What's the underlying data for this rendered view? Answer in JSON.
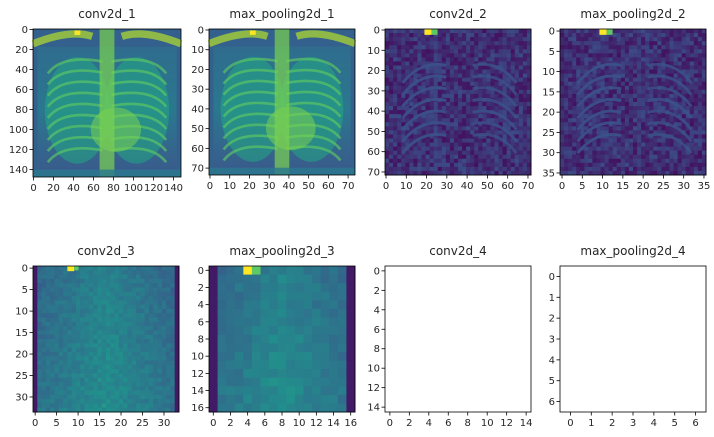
{
  "chart_data": [
    {
      "type": "heatmap",
      "title": "conv2d_1",
      "size": 148,
      "content": "chest-xray",
      "xticks": [
        "0",
        "20",
        "40",
        "60",
        "80",
        "100",
        "120",
        "140"
      ],
      "yticks": [
        "0",
        "20",
        "40",
        "60",
        "80",
        "100",
        "120",
        "140"
      ]
    },
    {
      "type": "heatmap",
      "title": "max_pooling2d_1",
      "size": 74,
      "content": "chest-xray",
      "xticks": [
        "0",
        "10",
        "20",
        "30",
        "40",
        "50",
        "60",
        "70"
      ],
      "yticks": [
        "0",
        "10",
        "20",
        "30",
        "40",
        "50",
        "60",
        "70"
      ]
    },
    {
      "type": "heatmap",
      "title": "conv2d_2",
      "size": 72,
      "content": "edge-features",
      "xticks": [
        "0",
        "10",
        "20",
        "30",
        "40",
        "50",
        "60",
        "70"
      ],
      "yticks": [
        "0",
        "10",
        "20",
        "30",
        "40",
        "50",
        "60",
        "70"
      ]
    },
    {
      "type": "heatmap",
      "title": "max_pooling2d_2",
      "size": 36,
      "content": "edge-features",
      "xticks": [
        "0",
        "5",
        "10",
        "15",
        "20",
        "25",
        "30",
        "35"
      ],
      "yticks": [
        "0",
        "5",
        "10",
        "15",
        "20",
        "25",
        "30",
        "35"
      ]
    },
    {
      "type": "heatmap",
      "title": "conv2d_3",
      "size": 34,
      "content": "coarse-features",
      "xticks": [
        "0",
        "5",
        "10",
        "15",
        "20",
        "25",
        "30"
      ],
      "yticks": [
        "0",
        "5",
        "10",
        "15",
        "20",
        "25",
        "30"
      ]
    },
    {
      "type": "heatmap",
      "title": "max_pooling2d_3",
      "size": 17,
      "content": "coarse-features",
      "xticks": [
        "0",
        "2",
        "4",
        "6",
        "8",
        "10",
        "12",
        "14",
        "16"
      ],
      "yticks": [
        "0",
        "2",
        "4",
        "6",
        "8",
        "10",
        "12",
        "14",
        "16"
      ]
    },
    {
      "type": "heatmap",
      "title": "conv2d_4",
      "size": 15,
      "content": "blank",
      "xticks": [
        "0",
        "2",
        "4",
        "6",
        "8",
        "10",
        "12",
        "14"
      ],
      "yticks": [
        "0",
        "2",
        "4",
        "6",
        "8",
        "10",
        "12",
        "14"
      ]
    },
    {
      "type": "heatmap",
      "title": "max_pooling2d_4",
      "size": 7,
      "content": "blank",
      "xticks": [
        "0",
        "1",
        "2",
        "3",
        "4",
        "5",
        "6"
      ],
      "yticks": [
        "0",
        "1",
        "2",
        "3",
        "4",
        "5",
        "6"
      ]
    }
  ],
  "colormap": {
    "name": "viridis",
    "dark": "#440154",
    "mid": "#21918c",
    "bright": "#fde725"
  }
}
